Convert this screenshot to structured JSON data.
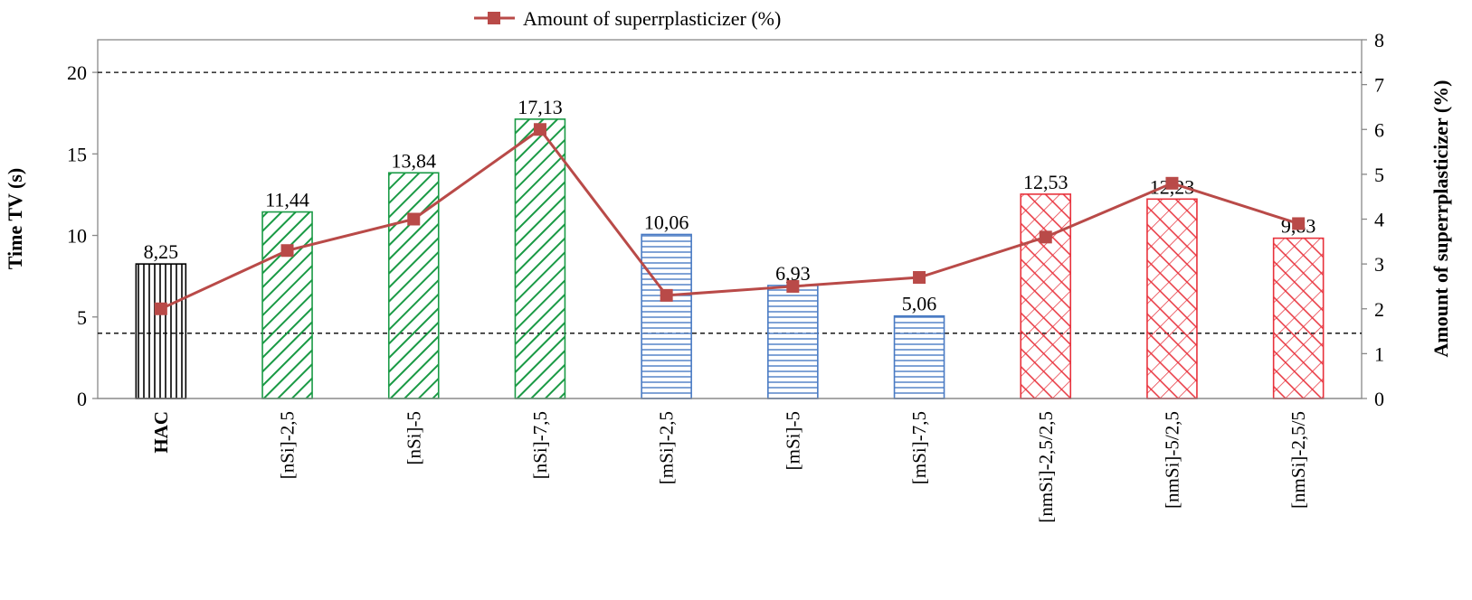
{
  "chart_data": {
    "type": "bar",
    "categories": [
      "HAC",
      "[nSi]-2,5",
      "[nSi]-5",
      "[nSi]-7,5",
      "[mSi]-2,5",
      "[mSi]-5",
      "[mSi]-7,5",
      "[nmSi]-2,5/2,5",
      "[nmSi]-5/2,5",
      "[nmSi]-2,5/5"
    ],
    "bar_series": {
      "values": [
        8.25,
        11.44,
        13.84,
        17.13,
        10.06,
        6.93,
        5.06,
        12.53,
        12.23,
        9.83
      ],
      "data_labels": [
        "8,25",
        "11,44",
        "13,84",
        "17,13",
        "10,06",
        "6,93",
        "5,06",
        "12,53",
        "12,23",
        "9,83"
      ],
      "patterns": [
        "vertical",
        "diagonal",
        "diagonal",
        "diagonal",
        "horizontal",
        "horizontal",
        "horizontal",
        "crosshatch",
        "crosshatch",
        "crosshatch"
      ],
      "colors": [
        "#000000",
        "#1a9a45",
        "#1a9a45",
        "#1a9a45",
        "#4a7bc4",
        "#4a7bc4",
        "#4a7bc4",
        "#e8323c",
        "#e8323c",
        "#e8323c"
      ]
    },
    "line_series": {
      "name": "Amount of superrplasticizer (%)",
      "values": [
        2.0,
        3.3,
        4.0,
        6.0,
        2.3,
        2.5,
        2.7,
        3.6,
        4.8,
        3.9
      ],
      "color": "#b94a48",
      "axis": "right"
    },
    "reference_lines": [
      20,
      4
    ],
    "ylabel": "Time TV (s)",
    "ylim": [
      0,
      22
    ],
    "yticks": [
      "0",
      "5",
      "10",
      "15",
      "20"
    ],
    "y2label": "Amount of superrplasticizer (%)",
    "y2lim": [
      0,
      8
    ],
    "y2ticks": [
      "0",
      "1",
      "2",
      "3",
      "4",
      "5",
      "6",
      "7",
      "8"
    ],
    "legend_position": "top-center",
    "grid": false
  }
}
